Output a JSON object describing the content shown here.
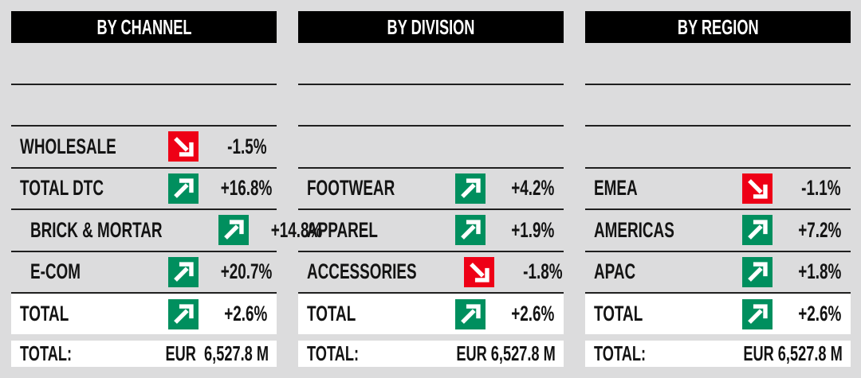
{
  "colors": {
    "background": "#dcdcdd",
    "positive": "#008f5e",
    "negative": "#ee0016",
    "header_bg": "#000000",
    "header_text": "#ffffff",
    "row_line": "#1f1f1f",
    "text": "#131313",
    "highlight_bg": "#ffffff"
  },
  "columns": [
    {
      "title": "BY CHANNEL",
      "rows": [
        {
          "empty": true
        },
        {
          "empty": true
        },
        {
          "label": "WHOLESALE",
          "trend": "down",
          "value": "-1.5%"
        },
        {
          "label": "TOTAL DTC",
          "trend": "up",
          "value": "+16.8%"
        },
        {
          "label": "BRICK & MORTAR",
          "indent": true,
          "trend": "up",
          "value": "+14.8%"
        },
        {
          "label": "E-COM",
          "indent": true,
          "trend": "up",
          "value": "+20.7%"
        },
        {
          "label": "TOTAL",
          "trend": "up",
          "value": "+2.6%",
          "highlight": true
        }
      ],
      "footer": {
        "label": "TOTAL:",
        "value": "EUR  6,527.8 M"
      }
    },
    {
      "title": "BY DIVISION",
      "rows": [
        {
          "empty": true
        },
        {
          "empty": true
        },
        {
          "empty": true
        },
        {
          "label": "FOOTWEAR",
          "trend": "up",
          "value": "+4.2%"
        },
        {
          "label": "APPAREL",
          "trend": "up",
          "value": "+1.9%"
        },
        {
          "label": "ACCESSORIES",
          "trend": "down",
          "value": "-1.8%"
        },
        {
          "label": "TOTAL",
          "trend": "up",
          "value": "+2.6%",
          "highlight": true
        }
      ],
      "footer": {
        "label": "TOTAL:",
        "value": "EUR 6,527.8 M"
      }
    },
    {
      "title": "BY REGION",
      "rows": [
        {
          "empty": true
        },
        {
          "empty": true
        },
        {
          "empty": true
        },
        {
          "label": "EMEA",
          "trend": "down",
          "value": "-1.1%"
        },
        {
          "label": "AMERICAS",
          "trend": "up",
          "value": "+7.2%"
        },
        {
          "label": "APAC",
          "trend": "up",
          "value": "+1.8%"
        },
        {
          "label": "TOTAL",
          "trend": "up",
          "value": "+2.6%",
          "highlight": true
        }
      ],
      "footer": {
        "label": "TOTAL:",
        "value": "EUR 6,527.8 M"
      }
    }
  ],
  "chart_data": [
    {
      "type": "table",
      "title": "BY CHANNEL",
      "categories": [
        "WHOLESALE",
        "TOTAL DTC",
        "BRICK & MORTAR",
        "E-COM",
        "TOTAL"
      ],
      "values": [
        -1.5,
        16.8,
        14.8,
        20.7,
        2.6
      ],
      "value_unit": "%",
      "total_label": "TOTAL:",
      "total_value": "EUR 6,527.8 M"
    },
    {
      "type": "table",
      "title": "BY DIVISION",
      "categories": [
        "FOOTWEAR",
        "APPAREL",
        "ACCESSORIES",
        "TOTAL"
      ],
      "values": [
        4.2,
        1.9,
        -1.8,
        2.6
      ],
      "value_unit": "%",
      "total_label": "TOTAL:",
      "total_value": "EUR 6,527.8 M"
    },
    {
      "type": "table",
      "title": "BY REGION",
      "categories": [
        "EMEA",
        "AMERICAS",
        "APAC",
        "TOTAL"
      ],
      "values": [
        -1.1,
        7.2,
        1.8,
        2.6
      ],
      "value_unit": "%",
      "total_label": "TOTAL:",
      "total_value": "EUR 6,527.8 M"
    }
  ]
}
